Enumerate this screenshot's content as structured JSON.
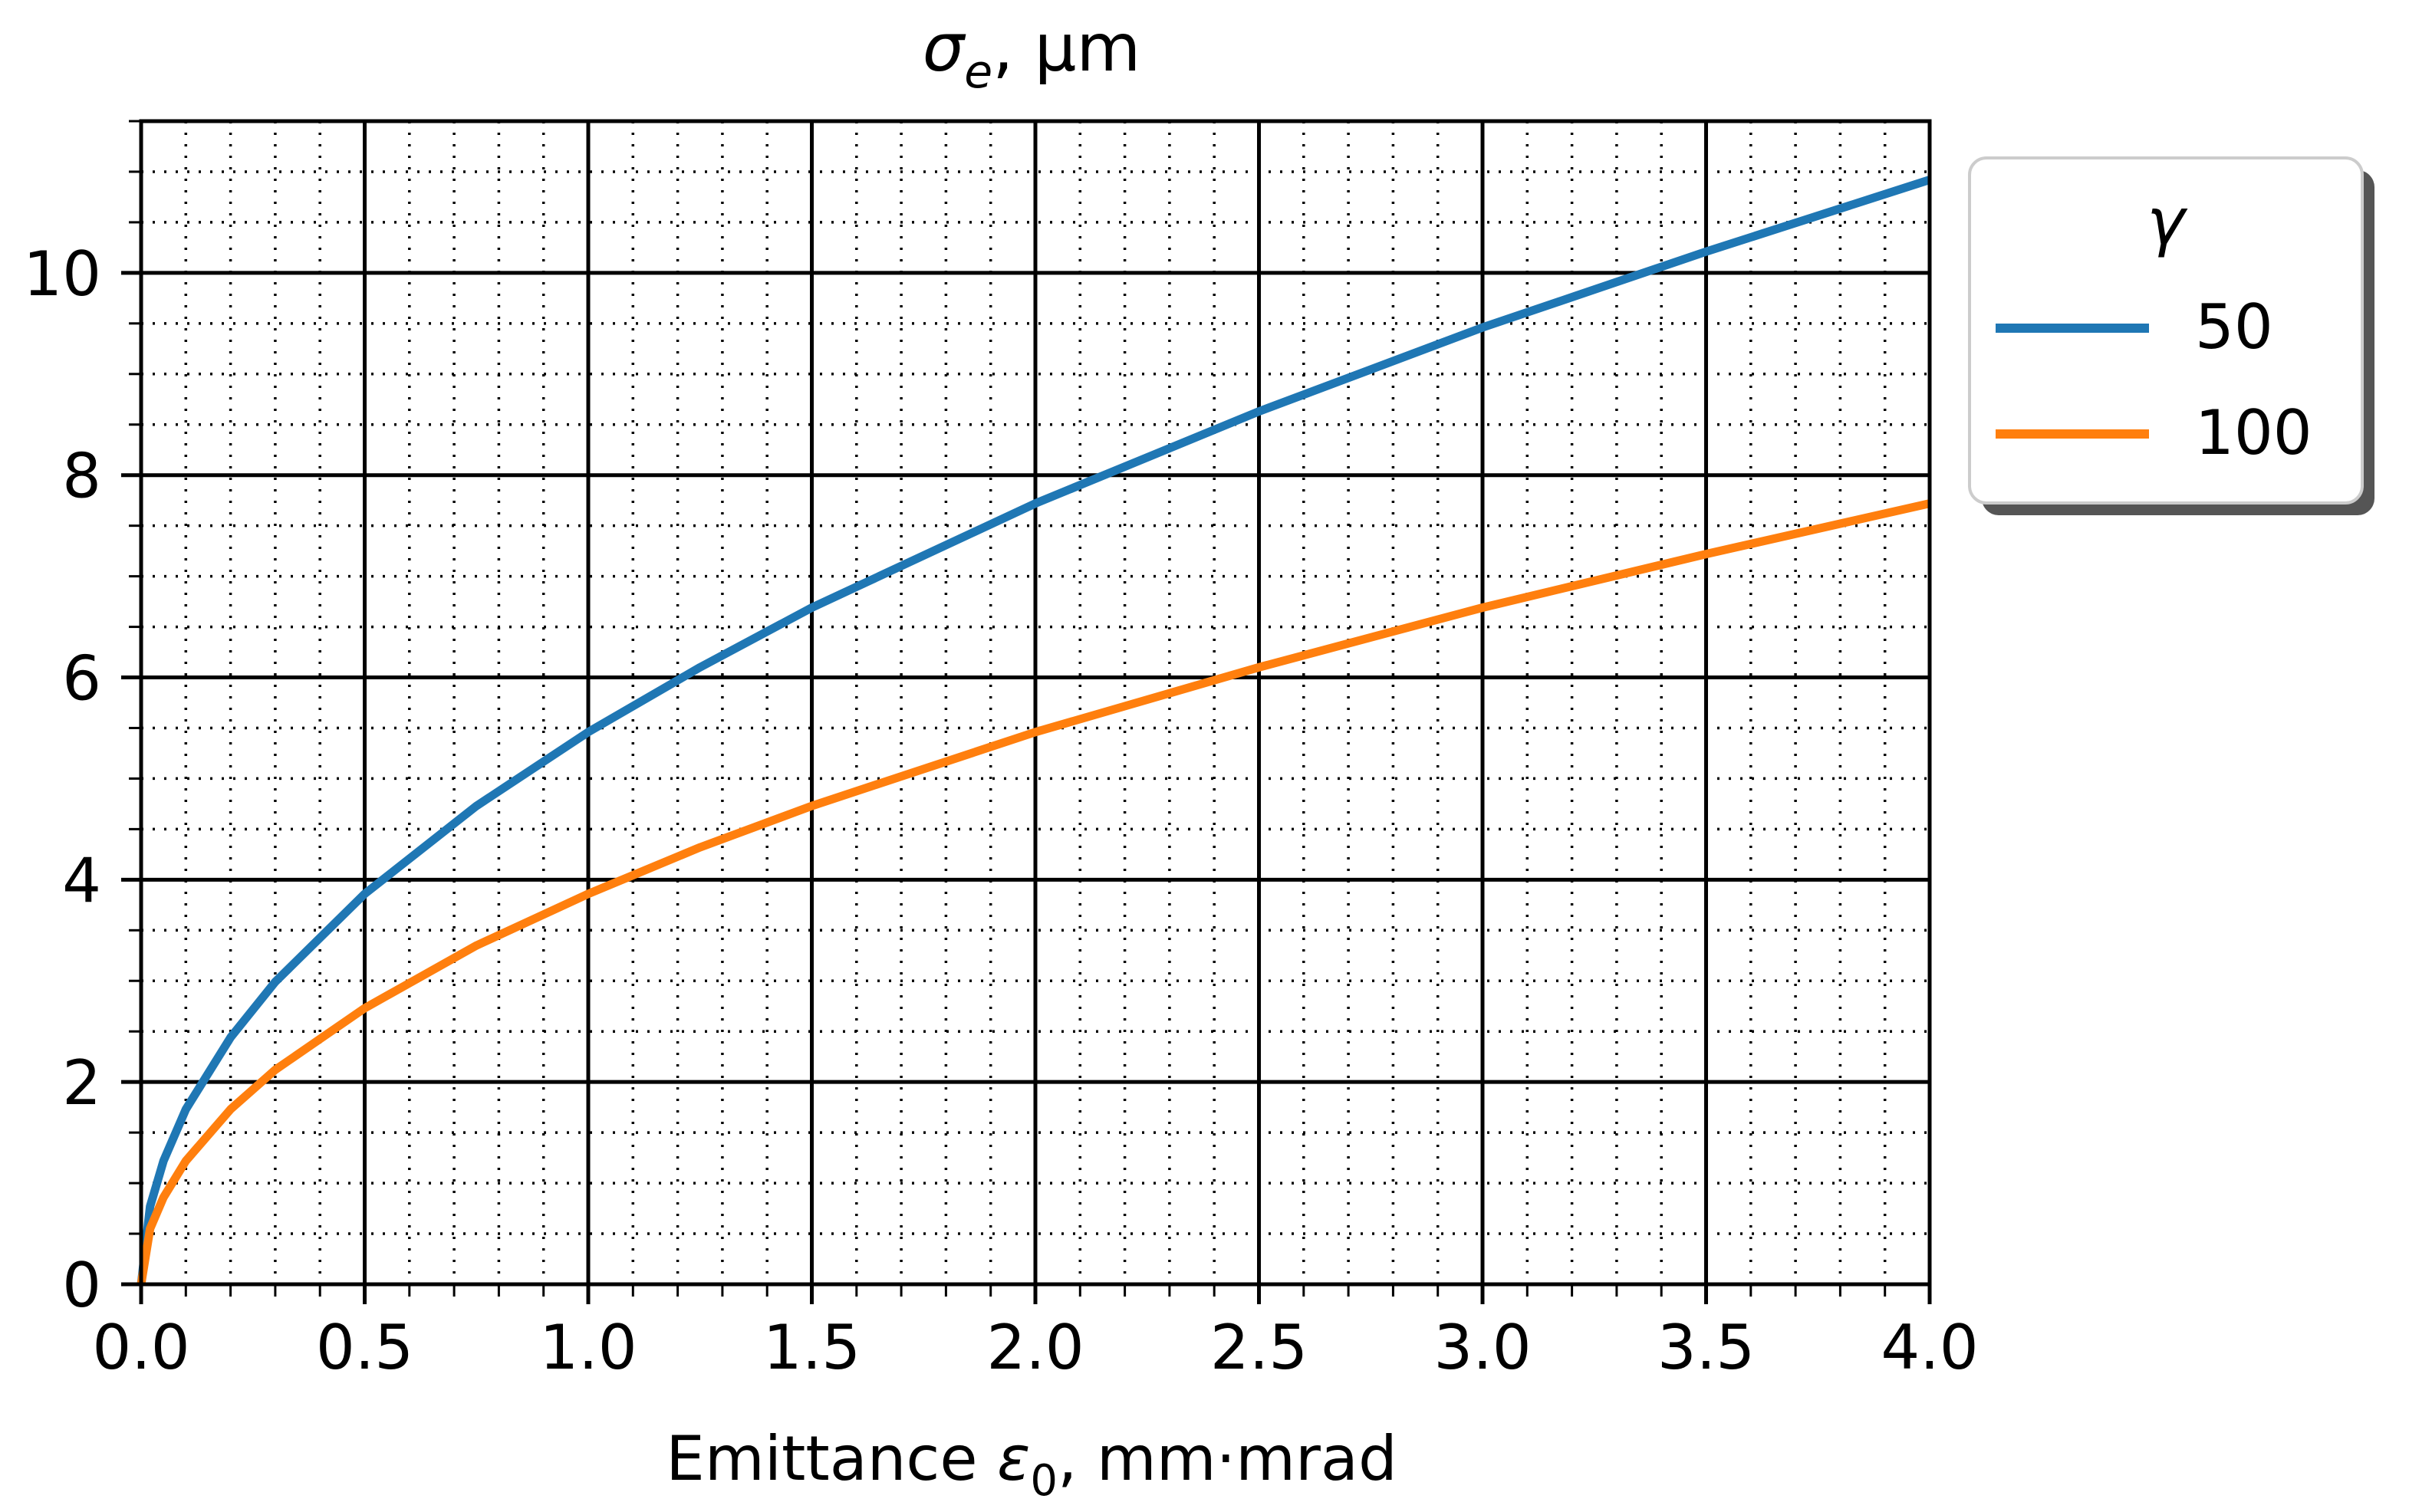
{
  "chart_data": {
    "type": "line",
    "title": "σₑ, μm",
    "title_symbol": "σ",
    "title_subscript": "e",
    "title_rest": ", μm",
    "xlabel_before": "Emittance ",
    "xlabel_symbol": "ε",
    "xlabel_subscript": "0",
    "xlabel_after": ", mm·mrad",
    "xlim": [
      0,
      4
    ],
    "ylim": [
      0,
      11.5
    ],
    "x_major_ticks": [
      0,
      0.5,
      1,
      1.5,
      2,
      2.5,
      3,
      3.5,
      4
    ],
    "x_tick_labels": [
      "0.0",
      "0.5",
      "1.0",
      "1.5",
      "2.0",
      "2.5",
      "3.0",
      "3.5",
      "4.0"
    ],
    "x_minor_step": 0.1,
    "y_major_ticks": [
      0,
      2,
      4,
      6,
      8,
      10
    ],
    "y_tick_labels": [
      "0",
      "2",
      "4",
      "6",
      "8",
      "10"
    ],
    "y_minor_step": 0.5,
    "grid": "major solid, minor dotted",
    "legend": {
      "title": "γ",
      "placement": "outside right, top",
      "entries": [
        "50",
        "100"
      ]
    },
    "series": [
      {
        "name": "50",
        "color": "#1f77b4",
        "x": [
          0,
          0.02,
          0.05,
          0.1,
          0.2,
          0.3,
          0.5,
          0.75,
          1.0,
          1.25,
          1.5,
          2.0,
          2.5,
          3.0,
          3.5,
          4.0
        ],
        "y": [
          0,
          0.77,
          1.22,
          1.73,
          2.44,
          2.99,
          3.86,
          4.73,
          5.46,
          6.1,
          6.69,
          7.72,
          8.63,
          9.46,
          10.21,
          10.92
        ]
      },
      {
        "name": "100",
        "color": "#ff7f0e",
        "x": [
          0,
          0.02,
          0.05,
          0.1,
          0.2,
          0.3,
          0.5,
          0.75,
          1.0,
          1.25,
          1.5,
          2.0,
          2.5,
          3.0,
          3.5,
          4.0
        ],
        "y": [
          0,
          0.55,
          0.86,
          1.22,
          1.73,
          2.12,
          2.73,
          3.35,
          3.86,
          4.32,
          4.73,
          5.46,
          6.1,
          6.69,
          7.22,
          7.72
        ]
      }
    ]
  }
}
